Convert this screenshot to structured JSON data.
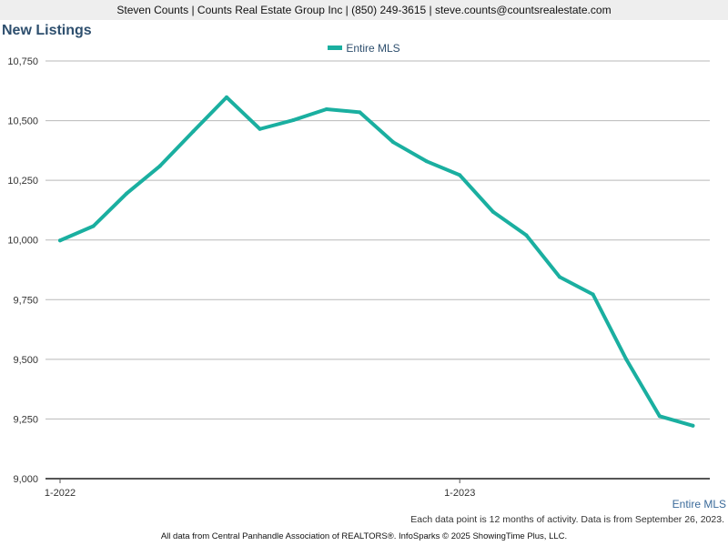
{
  "header": {
    "contact_line": "Steven Counts | Counts Real Estate Group Inc | (850) 249-3615 | steve.counts@countsrealestate.com"
  },
  "chart_data": {
    "type": "line",
    "title": "New Listings",
    "xlabel": "",
    "ylabel": "",
    "ylim": [
      9000,
      10750
    ],
    "yticks": [
      9000,
      9250,
      9500,
      9750,
      10000,
      10250,
      10500,
      10750
    ],
    "ytick_labels": [
      "9,000",
      "9,250",
      "9,500",
      "9,750",
      "10,000",
      "10,250",
      "10,500",
      "10,750"
    ],
    "x": [
      "1-2022",
      "2-2022",
      "3-2022",
      "4-2022",
      "5-2022",
      "6-2022",
      "7-2022",
      "8-2022",
      "9-2022",
      "10-2022",
      "11-2022",
      "12-2022",
      "1-2023",
      "2-2023",
      "3-2023",
      "4-2023",
      "5-2023",
      "6-2023",
      "7-2023",
      "8-2023"
    ],
    "xtick_labels": [
      "1-2022",
      "1-2023"
    ],
    "grid": true,
    "legend_position": "top-center",
    "series": [
      {
        "name": "Entire MLS",
        "color": "#1aafa0",
        "values": [
          9998,
          10058,
          10195,
          10310,
          10455,
          10598,
          10465,
          10502,
          10548,
          10535,
          10410,
          10330,
          10272,
          10118,
          10020,
          9845,
          9772,
          9500,
          9262,
          9222
        ]
      }
    ]
  },
  "series_tag": "Entire MLS",
  "note": "Each data point is 12 months of activity. Data is from September 26, 2023.",
  "footer": "All data from Central Panhandle Association of REALTORS®. InfoSparks © 2025 ShowingTime Plus, LLC."
}
